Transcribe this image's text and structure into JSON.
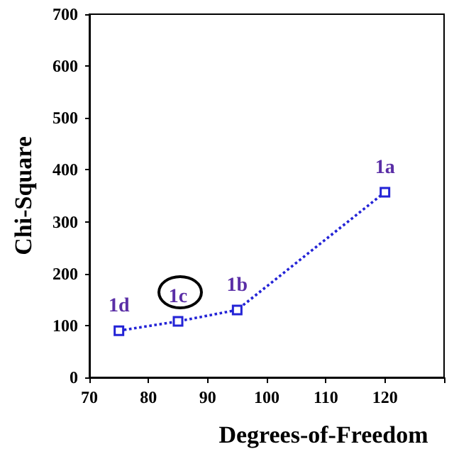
{
  "chart_data": {
    "type": "line",
    "xlabel": "Degrees-of-Freedom",
    "ylabel": "Chi-Square",
    "x": [
      75,
      85,
      95,
      120
    ],
    "series": [
      {
        "color": "#2323d6",
        "values": [
          90,
          108,
          130,
          357
        ]
      }
    ],
    "xlim": [
      70,
      130
    ],
    "xticks": [
      70,
      80,
      90,
      100,
      110,
      120,
      {
        "value": 130,
        "label": null
      }
    ],
    "ylim": [
      0,
      700
    ],
    "yticks": [
      0,
      100,
      200,
      300,
      400,
      500,
      600,
      700
    ],
    "marker": "square",
    "line_style": "dotted",
    "annotations": [
      {
        "text": "1d",
        "x": 75,
        "y": 90
      },
      {
        "text": "1c",
        "x": 85,
        "y": 108
      },
      {
        "text": "1b",
        "x": 95,
        "y": 130
      },
      {
        "text": "1a",
        "x": 120,
        "y": 357
      }
    ]
  }
}
